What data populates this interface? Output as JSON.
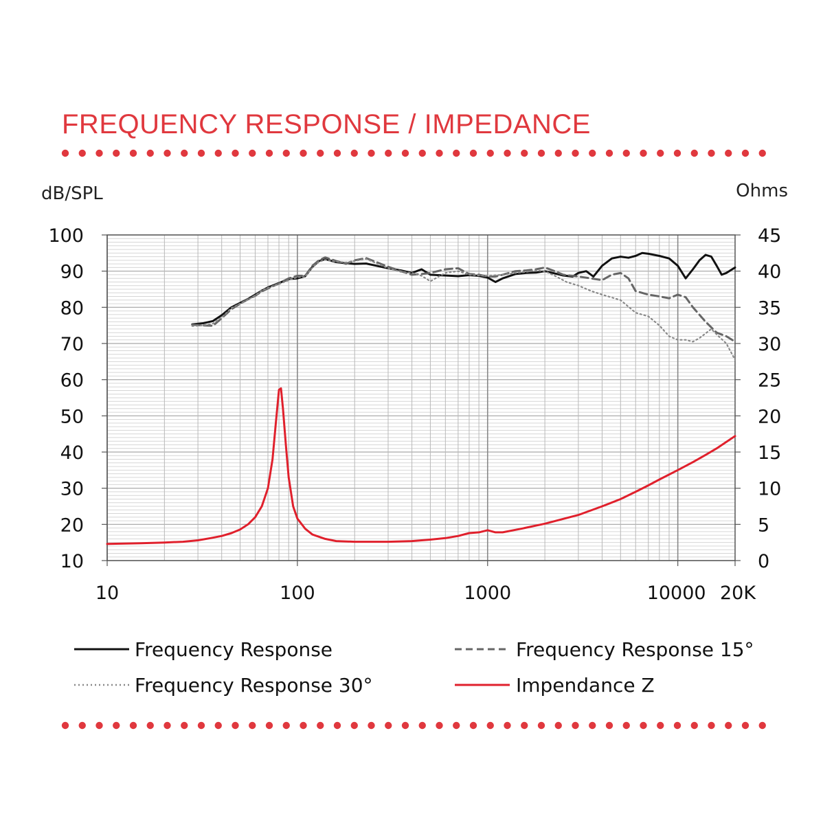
{
  "header": {
    "title": "FREQUENCY RESPONSE / IMPEDANCE",
    "accent_color": "#e0383e"
  },
  "chart_data": {
    "type": "line",
    "title": "FREQUENCY RESPONSE / IMPEDANCE",
    "x_scale": "log",
    "xlim": [
      10,
      20000
    ],
    "x_ticks": [
      {
        "value": 10,
        "label": "10"
      },
      {
        "value": 100,
        "label": "100"
      },
      {
        "value": 1000,
        "label": "1000"
      },
      {
        "value": 10000,
        "label": "10000"
      },
      {
        "value": 20000,
        "label": "20K"
      }
    ],
    "ylabel_left": "dB/SPL",
    "ylim_left": [
      10,
      100
    ],
    "y_ticks_left": [
      "10",
      "20",
      "30",
      "40",
      "50",
      "60",
      "70",
      "80",
      "90",
      "100"
    ],
    "ylabel_right": "Ohms",
    "ylim_right": [
      0,
      45
    ],
    "y_ticks_right": [
      "0",
      "5",
      "10",
      "15",
      "20",
      "25",
      "30",
      "35",
      "40",
      "45"
    ],
    "grid": true,
    "legend_position": "bottom",
    "series": [
      {
        "name": "Frequency Response",
        "axis": "left",
        "color": "#111111",
        "style": "solid",
        "points": [
          [
            28,
            75.3
          ],
          [
            32,
            75.6
          ],
          [
            36,
            76.2
          ],
          [
            40,
            77.8
          ],
          [
            45,
            80
          ],
          [
            50,
            81.2
          ],
          [
            55,
            82.3
          ],
          [
            60,
            83.5
          ],
          [
            65,
            84.6
          ],
          [
            70,
            85.5
          ],
          [
            80,
            86.7
          ],
          [
            90,
            87.8
          ],
          [
            100,
            88
          ],
          [
            110,
            88.6
          ],
          [
            120,
            91.2
          ],
          [
            130,
            92.8
          ],
          [
            140,
            93.3
          ],
          [
            160,
            92.5
          ],
          [
            180,
            92.2
          ],
          [
            200,
            92
          ],
          [
            230,
            92.1
          ],
          [
            260,
            91.5
          ],
          [
            300,
            90.8
          ],
          [
            350,
            90.2
          ],
          [
            400,
            89.5
          ],
          [
            450,
            90.5
          ],
          [
            500,
            89
          ],
          [
            600,
            88.8
          ],
          [
            700,
            88.6
          ],
          [
            800,
            88.9
          ],
          [
            900,
            88.7
          ],
          [
            1000,
            88.2
          ],
          [
            1100,
            87
          ],
          [
            1200,
            88
          ],
          [
            1400,
            89.2
          ],
          [
            1600,
            89.5
          ],
          [
            1800,
            89.6
          ],
          [
            2000,
            90
          ],
          [
            2200,
            89.5
          ],
          [
            2500,
            88.8
          ],
          [
            2800,
            88.5
          ],
          [
            3000,
            89.5
          ],
          [
            3300,
            90
          ],
          [
            3600,
            88.5
          ],
          [
            4000,
            91.5
          ],
          [
            4500,
            93.5
          ],
          [
            5000,
            94
          ],
          [
            5500,
            93.7
          ],
          [
            6000,
            94.2
          ],
          [
            6500,
            95
          ],
          [
            7000,
            94.8
          ],
          [
            8000,
            94.2
          ],
          [
            9000,
            93.5
          ],
          [
            10000,
            91.5
          ],
          [
            11000,
            88
          ],
          [
            12000,
            90.5
          ],
          [
            13000,
            93
          ],
          [
            14000,
            94.5
          ],
          [
            15000,
            94
          ],
          [
            16000,
            91.5
          ],
          [
            17000,
            89
          ],
          [
            18000,
            89.5
          ],
          [
            20000,
            91
          ]
        ]
      },
      {
        "name": "Frequency Response 15°",
        "axis": "left",
        "color": "#666666",
        "style": "dashed",
        "points": [
          [
            28,
            75.2
          ],
          [
            32,
            75
          ],
          [
            36,
            74.9
          ],
          [
            40,
            77
          ],
          [
            45,
            79.5
          ],
          [
            50,
            81
          ],
          [
            55,
            82.2
          ],
          [
            60,
            83.2
          ],
          [
            65,
            84.4
          ],
          [
            70,
            85.2
          ],
          [
            80,
            86.6
          ],
          [
            90,
            88
          ],
          [
            100,
            88.7
          ],
          [
            110,
            88.7
          ],
          [
            120,
            91.5
          ],
          [
            130,
            93
          ],
          [
            140,
            93.8
          ],
          [
            160,
            92.8
          ],
          [
            180,
            92
          ],
          [
            200,
            93
          ],
          [
            230,
            93.6
          ],
          [
            260,
            92.5
          ],
          [
            300,
            91.2
          ],
          [
            350,
            90
          ],
          [
            400,
            89
          ],
          [
            450,
            89.2
          ],
          [
            500,
            89.5
          ],
          [
            600,
            90.5
          ],
          [
            700,
            90.8
          ],
          [
            800,
            89.2
          ],
          [
            900,
            89
          ],
          [
            1000,
            88.5
          ],
          [
            1100,
            88.5
          ],
          [
            1200,
            89
          ],
          [
            1400,
            90
          ],
          [
            1600,
            90.2
          ],
          [
            1800,
            90.5
          ],
          [
            2000,
            91
          ],
          [
            2200,
            90.2
          ],
          [
            2500,
            89
          ],
          [
            3000,
            88.5
          ],
          [
            3500,
            88
          ],
          [
            4000,
            87.5
          ],
          [
            4500,
            89
          ],
          [
            5000,
            89.5
          ],
          [
            5500,
            88
          ],
          [
            6000,
            84.5
          ],
          [
            7000,
            83.5
          ],
          [
            8000,
            83
          ],
          [
            9000,
            82.5
          ],
          [
            10000,
            83.5
          ],
          [
            11000,
            82.8
          ],
          [
            12000,
            80
          ],
          [
            14000,
            76
          ],
          [
            16000,
            73
          ],
          [
            18000,
            72
          ],
          [
            20000,
            70.5
          ]
        ]
      },
      {
        "name": "Frequency Response 30°",
        "axis": "left",
        "color": "#888888",
        "style": "dotted",
        "points": [
          [
            28,
            74.8
          ],
          [
            32,
            75
          ],
          [
            36,
            75.5
          ],
          [
            40,
            77.2
          ],
          [
            45,
            79.8
          ],
          [
            50,
            81
          ],
          [
            55,
            82.1
          ],
          [
            60,
            83.3
          ],
          [
            65,
            84.6
          ],
          [
            70,
            85.4
          ],
          [
            80,
            86.4
          ],
          [
            90,
            87.5
          ],
          [
            100,
            88.3
          ],
          [
            110,
            88.5
          ],
          [
            120,
            91
          ],
          [
            130,
            92.6
          ],
          [
            140,
            93.1
          ],
          [
            160,
            92.6
          ],
          [
            180,
            92.4
          ],
          [
            200,
            92.8
          ],
          [
            230,
            93.4
          ],
          [
            260,
            92.2
          ],
          [
            300,
            90.8
          ],
          [
            350,
            89.8
          ],
          [
            400,
            89.5
          ],
          [
            450,
            88.7
          ],
          [
            500,
            87.2
          ],
          [
            600,
            89.5
          ],
          [
            700,
            90
          ],
          [
            800,
            89
          ],
          [
            900,
            88.8
          ],
          [
            1000,
            88.7
          ],
          [
            1200,
            89
          ],
          [
            1400,
            89.5
          ],
          [
            1600,
            89.8
          ],
          [
            1800,
            90.2
          ],
          [
            2000,
            90
          ],
          [
            2300,
            88.5
          ],
          [
            2600,
            87
          ],
          [
            3000,
            86
          ],
          [
            3500,
            84.5
          ],
          [
            4000,
            83.5
          ],
          [
            5000,
            82
          ],
          [
            6000,
            78.5
          ],
          [
            7000,
            77.5
          ],
          [
            8000,
            75
          ],
          [
            9000,
            72
          ],
          [
            10000,
            71
          ],
          [
            11000,
            71
          ],
          [
            12000,
            70.5
          ],
          [
            13000,
            71.5
          ],
          [
            15000,
            74
          ],
          [
            16000,
            72.5
          ],
          [
            18000,
            70
          ],
          [
            20000,
            65.5
          ]
        ]
      },
      {
        "name": "Impendance Z",
        "axis": "right",
        "color": "#e0202c",
        "style": "solid",
        "points": [
          [
            10,
            2.3
          ],
          [
            15,
            2.4
          ],
          [
            20,
            2.5
          ],
          [
            25,
            2.6
          ],
          [
            30,
            2.8
          ],
          [
            35,
            3.1
          ],
          [
            40,
            3.4
          ],
          [
            45,
            3.8
          ],
          [
            50,
            4.3
          ],
          [
            55,
            5
          ],
          [
            60,
            6
          ],
          [
            65,
            7.5
          ],
          [
            70,
            10
          ],
          [
            74,
            14
          ],
          [
            77,
            19
          ],
          [
            80,
            23.6
          ],
          [
            82,
            23.8
          ],
          [
            84,
            21
          ],
          [
            87,
            16
          ],
          [
            90,
            11.5
          ],
          [
            95,
            7.5
          ],
          [
            100,
            5.8
          ],
          [
            110,
            4.4
          ],
          [
            120,
            3.6
          ],
          [
            140,
            3
          ],
          [
            160,
            2.7
          ],
          [
            200,
            2.6
          ],
          [
            300,
            2.6
          ],
          [
            400,
            2.7
          ],
          [
            500,
            2.9
          ],
          [
            600,
            3.1
          ],
          [
            700,
            3.4
          ],
          [
            800,
            3.8
          ],
          [
            900,
            3.9
          ],
          [
            1000,
            4.2
          ],
          [
            1100,
            3.9
          ],
          [
            1200,
            3.9
          ],
          [
            1500,
            4.4
          ],
          [
            2000,
            5.1
          ],
          [
            3000,
            6.3
          ],
          [
            4000,
            7.5
          ],
          [
            5000,
            8.5
          ],
          [
            6000,
            9.5
          ],
          [
            7000,
            10.4
          ],
          [
            8000,
            11.2
          ],
          [
            10000,
            12.5
          ],
          [
            12000,
            13.6
          ],
          [
            14000,
            14.6
          ],
          [
            16000,
            15.5
          ],
          [
            18000,
            16.4
          ],
          [
            20000,
            17.2
          ]
        ]
      }
    ]
  }
}
